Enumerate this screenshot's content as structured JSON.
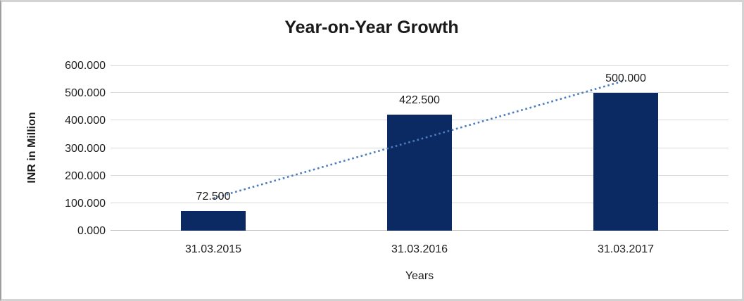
{
  "chart_data": {
    "type": "bar",
    "title": "Year-on-Year Growth",
    "xlabel": "Years",
    "ylabel": "INR in Million",
    "categories": [
      "31.03.2015",
      "31.03.2016",
      "31.03.2017"
    ],
    "values": [
      72.5,
      422.5,
      500.0
    ],
    "value_labels": [
      "72.500",
      "422.500",
      "500.000"
    ],
    "ylim": [
      0,
      600
    ],
    "ytick_step": 100,
    "ytick_labels": [
      "0.000",
      "100.000",
      "200.000",
      "300.000",
      "400.000",
      "500.000",
      "600.000"
    ],
    "grid": true,
    "legend": "none",
    "bar_color": "#0b2a63",
    "gridline_color": "#d9d9d9",
    "axis_line_color": "#c0c0c0",
    "chart_border_color": "#d3d3d3",
    "background_color": "#ffffff",
    "trendline": {
      "type": "linear",
      "style": "dotted",
      "color": "#4a7bbf"
    }
  }
}
